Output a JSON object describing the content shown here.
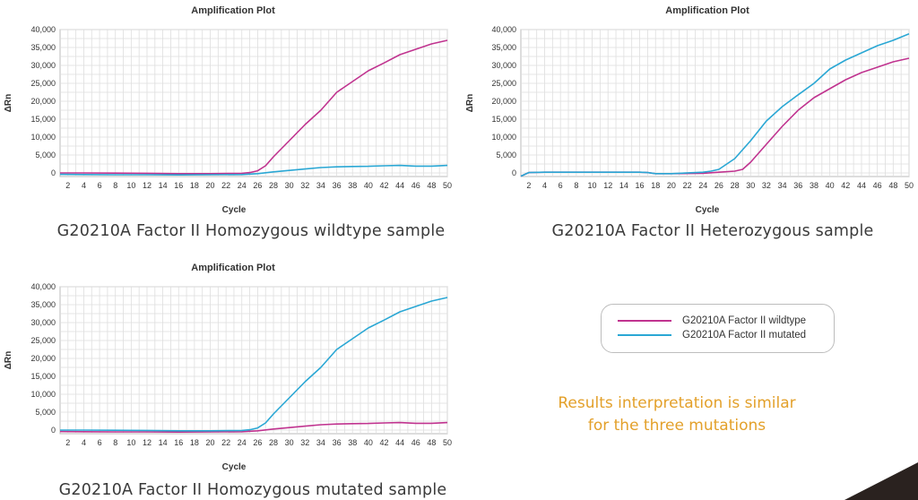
{
  "chart_data": [
    {
      "type": "line",
      "title": "Amplification Plot",
      "xlabel": "Cycle",
      "ylabel": "ΔRn",
      "caption": "G20210A Factor II Homozygous wildtype sample",
      "xlim": [
        1,
        50
      ],
      "ylim": [
        -1000,
        40000
      ],
      "xticks": [
        "2",
        "4",
        "6",
        "8",
        "10",
        "12",
        "14",
        "16",
        "18",
        "20",
        "22",
        "24",
        "26",
        "28",
        "30",
        "32",
        "34",
        "36",
        "38",
        "40",
        "42",
        "44",
        "46",
        "48",
        "50"
      ],
      "yticks": [
        "0",
        "5,000",
        "10,000",
        "15,000",
        "20,000",
        "25,000",
        "30,000",
        "35,000",
        "40,000"
      ],
      "series": [
        {
          "name": "G20210A Factor II wildtype",
          "color": "#c0338f",
          "x": [
            1,
            4,
            8,
            12,
            16,
            20,
            24,
            25,
            26,
            27,
            28,
            30,
            32,
            34,
            36,
            38,
            40,
            42,
            44,
            46,
            48,
            50
          ],
          "y": [
            0,
            0,
            -50,
            -100,
            -200,
            -200,
            -100,
            100,
            600,
            2000,
            4500,
            9000,
            13500,
            17500,
            22500,
            25500,
            28500,
            30700,
            33000,
            34500,
            36000,
            37000
          ]
        },
        {
          "name": "G20210A Factor II mutated",
          "color": "#2aa7d4",
          "x": [
            1,
            4,
            8,
            12,
            16,
            20,
            24,
            26,
            28,
            30,
            32,
            34,
            36,
            38,
            40,
            42,
            44,
            46,
            48,
            50
          ],
          "y": [
            -400,
            -450,
            -500,
            -500,
            -550,
            -500,
            -450,
            -200,
            300,
            700,
            1100,
            1500,
            1700,
            1800,
            1850,
            2000,
            2100,
            1900,
            1900,
            2100
          ]
        }
      ]
    },
    {
      "type": "line",
      "title": "Amplification Plot",
      "xlabel": "Cycle",
      "ylabel": "ΔRn",
      "caption": "G20210A Factor II Heterozygous sample",
      "xlim": [
        1,
        50
      ],
      "ylim": [
        -1000,
        40000
      ],
      "xticks": [
        "2",
        "4",
        "6",
        "8",
        "10",
        "12",
        "14",
        "16",
        "18",
        "20",
        "22",
        "24",
        "26",
        "28",
        "30",
        "32",
        "34",
        "36",
        "38",
        "40",
        "42",
        "44",
        "46",
        "48",
        "50"
      ],
      "yticks": [
        "0",
        "5,000",
        "10,000",
        "15,000",
        "20,000",
        "25,000",
        "30,000",
        "35,000",
        "40,000"
      ],
      "series": [
        {
          "name": "G20210A Factor II wildtype",
          "color": "#c0338f",
          "x": [
            1,
            2,
            4,
            8,
            12,
            16,
            17,
            18,
            20,
            24,
            26,
            28,
            29,
            30,
            32,
            34,
            36,
            38,
            40,
            42,
            44,
            46,
            48,
            50
          ],
          "y": [
            -900,
            100,
            200,
            200,
            200,
            200,
            100,
            -200,
            -200,
            -100,
            200,
            500,
            1000,
            3000,
            8000,
            13000,
            17500,
            21000,
            23500,
            26000,
            28000,
            29500,
            31000,
            32000
          ]
        },
        {
          "name": "G20210A Factor II mutated",
          "color": "#2aa7d4",
          "x": [
            1,
            2,
            4,
            8,
            12,
            16,
            17,
            18,
            20,
            24,
            25,
            26,
            28,
            30,
            32,
            34,
            36,
            38,
            40,
            42,
            44,
            46,
            48,
            50
          ],
          "y": [
            -900,
            100,
            200,
            200,
            200,
            200,
            100,
            -200,
            -200,
            200,
            500,
            1000,
            4000,
            9000,
            14500,
            18500,
            21800,
            25000,
            29000,
            31500,
            33500,
            35500,
            37000,
            38800
          ]
        }
      ]
    },
    {
      "type": "line",
      "title": "Amplification Plot",
      "xlabel": "Cycle",
      "ylabel": "ΔRn",
      "caption": "G20210A Factor II Homozygous mutated sample",
      "xlim": [
        1,
        50
      ],
      "ylim": [
        -1000,
        40000
      ],
      "xticks": [
        "2",
        "4",
        "6",
        "8",
        "10",
        "12",
        "14",
        "16",
        "18",
        "20",
        "22",
        "24",
        "26",
        "28",
        "30",
        "32",
        "34",
        "36",
        "38",
        "40",
        "42",
        "44",
        "46",
        "48",
        "50"
      ],
      "yticks": [
        "0",
        "5,000",
        "10,000",
        "15,000",
        "20,000",
        "25,000",
        "30,000",
        "35,000",
        "40,000"
      ],
      "series": [
        {
          "name": "G20210A Factor II wildtype",
          "color": "#c0338f",
          "x": [
            1,
            4,
            8,
            12,
            16,
            20,
            24,
            26,
            28,
            30,
            32,
            34,
            36,
            38,
            40,
            42,
            44,
            46,
            48,
            50
          ],
          "y": [
            -400,
            -450,
            -500,
            -500,
            -550,
            -500,
            -450,
            -200,
            300,
            700,
            1100,
            1500,
            1700,
            1800,
            1850,
            2000,
            2100,
            1900,
            1900,
            2100
          ]
        },
        {
          "name": "G20210A Factor II mutated",
          "color": "#2aa7d4",
          "x": [
            1,
            4,
            8,
            12,
            16,
            20,
            24,
            25,
            26,
            27,
            28,
            30,
            32,
            34,
            36,
            38,
            40,
            42,
            44,
            46,
            48,
            50
          ],
          "y": [
            0,
            0,
            -50,
            -100,
            -200,
            -200,
            -100,
            100,
            600,
            2000,
            4500,
            9000,
            13500,
            17500,
            22500,
            25500,
            28500,
            30700,
            33000,
            34500,
            36000,
            37000
          ]
        }
      ]
    }
  ],
  "legend": {
    "items": [
      {
        "label": "G20210A Factor II wildtype",
        "color": "#c0338f"
      },
      {
        "label": "G20210A Factor II mutated",
        "color": "#2aa7d4"
      }
    ]
  },
  "interpretation": {
    "line1": "Results interpretation is similar",
    "line2": "for the three mutations"
  }
}
